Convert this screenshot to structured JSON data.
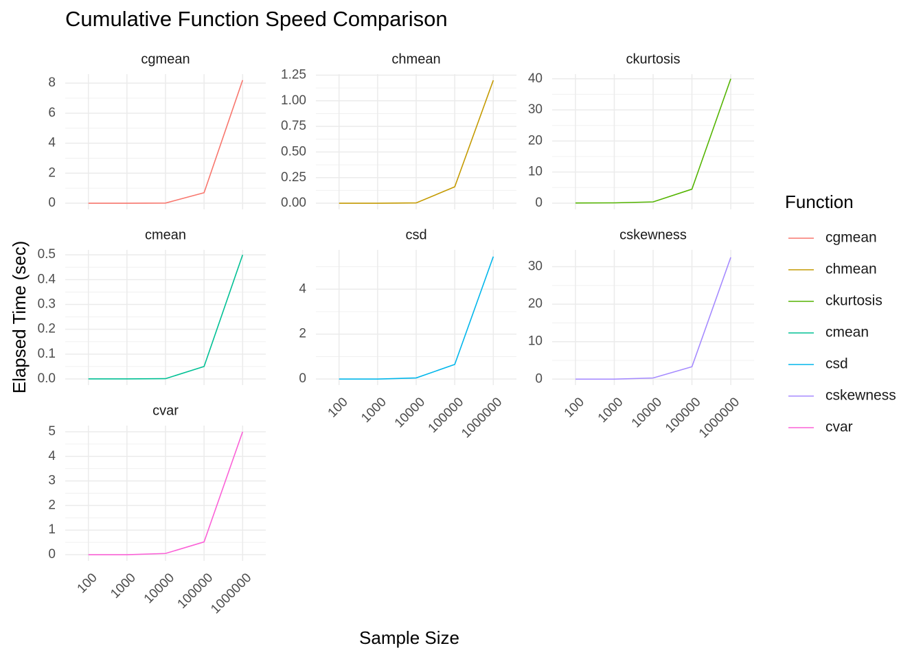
{
  "title": "Cumulative Function Speed Comparison",
  "x_label": "Sample Size",
  "y_label": "Elapsed Time (sec)",
  "legend_title": "Function",
  "chart_data": [
    {
      "type": "line",
      "title": "cgmean",
      "categories": [
        "100",
        "1000",
        "10000",
        "100000",
        "1000000"
      ],
      "x_tick_labels": false,
      "series": [
        {
          "name": "cgmean",
          "color": "#F8766D",
          "values": [
            0,
            0,
            0.01,
            0.7,
            8.2
          ]
        }
      ],
      "ylim": [
        -0.41,
        8.6
      ],
      "yticks": [
        0,
        2,
        4,
        6,
        8
      ],
      "grid": true
    },
    {
      "type": "line",
      "title": "chmean",
      "categories": [
        "100",
        "1000",
        "10000",
        "100000",
        "1000000"
      ],
      "x_tick_labels": false,
      "series": [
        {
          "name": "chmean",
          "color": "#C49A00",
          "values": [
            0,
            0,
            0.003,
            0.16,
            1.2
          ]
        }
      ],
      "ylim": [
        -0.06,
        1.26
      ],
      "yticks": [
        {
          "value": 0,
          "label": "0.00"
        },
        0.25,
        {
          "value": 0.5,
          "label": "0.50"
        },
        0.75,
        {
          "value": 1,
          "label": "1.00"
        },
        1.25
      ],
      "grid": true
    },
    {
      "type": "line",
      "title": "ckurtosis",
      "categories": [
        "100",
        "1000",
        "10000",
        "100000",
        "1000000"
      ],
      "x_tick_labels": false,
      "series": [
        {
          "name": "ckurtosis",
          "color": "#53B400",
          "values": [
            0.05,
            0.1,
            0.4,
            4.5,
            40
          ]
        }
      ],
      "ylim": [
        -2,
        41.5
      ],
      "yticks": [
        0,
        10,
        20,
        30,
        40
      ],
      "grid": true
    },
    {
      "type": "line",
      "title": "cmean",
      "categories": [
        "100",
        "1000",
        "10000",
        "100000",
        "1000000"
      ],
      "x_tick_labels": false,
      "series": [
        {
          "name": "cmean",
          "color": "#00C094",
          "values": [
            0,
            0,
            0.001,
            0.05,
            0.5
          ]
        }
      ],
      "ylim": [
        -0.025,
        0.52
      ],
      "yticks": [
        {
          "value": 0,
          "label": "0.0"
        },
        0.1,
        0.2,
        0.3,
        0.4,
        0.5
      ],
      "grid": true
    },
    {
      "type": "line",
      "title": "csd",
      "categories": [
        "100",
        "1000",
        "10000",
        "100000",
        "1000000"
      ],
      "x_tick_labels": true,
      "series": [
        {
          "name": "csd",
          "color": "#00B6EB",
          "values": [
            0,
            0,
            0.05,
            0.65,
            5.45
          ]
        }
      ],
      "ylim": [
        -0.27,
        5.75
      ],
      "yticks": [
        0,
        2,
        4
      ],
      "grid": true
    },
    {
      "type": "line",
      "title": "cskewness",
      "categories": [
        "100",
        "1000",
        "10000",
        "100000",
        "1000000"
      ],
      "x_tick_labels": true,
      "series": [
        {
          "name": "cskewness",
          "color": "#A58AFF",
          "values": [
            0,
            0,
            0.3,
            3.3,
            32.5
          ]
        }
      ],
      "ylim": [
        -1.6,
        34.5
      ],
      "yticks": [
        0,
        10,
        20,
        30
      ],
      "grid": true
    },
    {
      "type": "line",
      "title": "cvar",
      "categories": [
        "100",
        "1000",
        "10000",
        "100000",
        "1000000"
      ],
      "x_tick_labels": true,
      "series": [
        {
          "name": "cvar",
          "color": "#FB61D7",
          "values": [
            0,
            0,
            0.05,
            0.52,
            5
          ]
        }
      ],
      "ylim": [
        -0.25,
        5.25
      ],
      "yticks": [
        0,
        1,
        2,
        3,
        4,
        5
      ],
      "grid": true
    }
  ]
}
